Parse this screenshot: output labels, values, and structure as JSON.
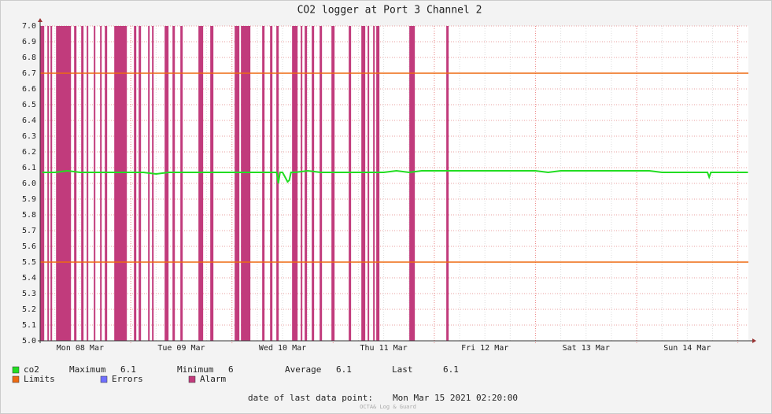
{
  "chart_data": {
    "type": "line",
    "title": "CO2 logger at Port 3 Channel 2",
    "xlim": [
      2.5,
      170.5
    ],
    "xticks": [
      {
        "value": 12,
        "label": "Mon 08 Mar"
      },
      {
        "value": 36,
        "label": "Tue 09 Mar"
      },
      {
        "value": 60,
        "label": "Wed 10 Mar"
      },
      {
        "value": 84,
        "label": "Thu 11 Mar"
      },
      {
        "value": 108,
        "label": "Fri 12 Mar"
      },
      {
        "value": 132,
        "label": "Sat 13 Mar"
      },
      {
        "value": 156,
        "label": "Sun 14 Mar"
      }
    ],
    "day_lines": [
      24,
      48,
      72,
      96,
      120,
      144,
      168
    ],
    "ylim": [
      5,
      7
    ],
    "yticks": [
      {
        "value": 5,
        "label": "5.0"
      },
      5.1,
      5.2,
      5.3,
      5.4,
      5.5,
      5.6,
      5.7,
      5.8,
      5.9,
      {
        "value": 6,
        "label": "6.0"
      },
      6.1,
      6.2,
      6.3,
      6.4,
      6.5,
      6.6,
      6.7,
      6.8,
      6.9,
      {
        "value": 7,
        "label": "7.0"
      }
    ],
    "grid": true,
    "series": [
      {
        "name": "co2",
        "color": "#22dd22",
        "x": [
          3,
          6,
          9,
          12,
          15,
          18,
          21,
          24,
          27,
          30,
          33,
          36,
          39,
          42,
          45,
          48,
          51,
          54,
          57,
          58.6,
          59,
          59.4,
          60,
          61.2,
          61.6,
          62,
          63,
          66,
          69,
          72,
          75,
          78,
          81,
          84,
          87,
          90,
          93,
          96,
          99,
          102,
          105,
          108,
          111,
          114,
          117,
          120,
          123,
          126,
          129,
          132,
          135,
          138,
          141,
          144,
          147,
          150,
          153,
          156,
          159,
          160.8,
          161.2,
          161.6,
          162,
          165,
          168,
          170.4
        ],
        "values": [
          6.07,
          6.07,
          6.08,
          6.07,
          6.07,
          6.07,
          6.07,
          6.07,
          6.07,
          6.06,
          6.07,
          6.07,
          6.07,
          6.07,
          6.07,
          6.07,
          6.07,
          6.07,
          6.07,
          6.07,
          6.0,
          6.07,
          6.07,
          6.01,
          6.02,
          6.07,
          6.07,
          6.08,
          6.07,
          6.07,
          6.07,
          6.07,
          6.07,
          6.07,
          6.08,
          6.07,
          6.08,
          6.08,
          6.08,
          6.08,
          6.08,
          6.08,
          6.08,
          6.08,
          6.08,
          6.08,
          6.07,
          6.08,
          6.08,
          6.08,
          6.08,
          6.08,
          6.08,
          6.08,
          6.08,
          6.07,
          6.07,
          6.07,
          6.07,
          6.07,
          6.04,
          6.07,
          6.07,
          6.07,
          6.07,
          6.07
        ],
        "stats": [
          {
            "label": "Maximum",
            "value": 6.1
          },
          {
            "label": "Minimum",
            "value": 6.0
          },
          {
            "label": "Average",
            "value": 6.1
          },
          {
            "label": "Last",
            "value": 6.1
          }
        ]
      },
      {
        "name": "Limits",
        "color": "#ee6a11",
        "values": [
          5.5,
          6.7
        ]
      },
      {
        "name": "Errors",
        "color": "#6f6fff",
        "values": []
      },
      {
        "name": "Alarm",
        "color": "#c13b7c",
        "intervals": [
          [
            2.54,
            3.47
          ],
          [
            4.22,
            4.59
          ],
          [
            4.96,
            5.34
          ],
          [
            6.27,
            9.82
          ],
          [
            10.56,
            11.12
          ],
          [
            12.24,
            12.8
          ],
          [
            13.55,
            13.92
          ],
          [
            15.23,
            15.6
          ],
          [
            16.72,
            17.1
          ],
          [
            17.84,
            18.4
          ],
          [
            20.08,
            23.07
          ],
          [
            24.75,
            25.31
          ],
          [
            25.87,
            26.43
          ],
          [
            28.11,
            28.48
          ],
          [
            29.04,
            29.42
          ],
          [
            32.03,
            32.96
          ],
          [
            33.9,
            34.46
          ],
          [
            35.76,
            36.32
          ],
          [
            40.05,
            41.17
          ],
          [
            42.85,
            43.6
          ],
          [
            48.64,
            49.76
          ],
          [
            50.13,
            52.37
          ],
          [
            55.17,
            55.73
          ],
          [
            57.04,
            57.6
          ],
          [
            58.53,
            59.09
          ],
          [
            62.26,
            63.57
          ],
          [
            64.32,
            64.69
          ],
          [
            65.25,
            65.81
          ],
          [
            66.93,
            67.49
          ],
          [
            68.8,
            69.36
          ],
          [
            71.6,
            72.34
          ],
          [
            75.7,
            76.26
          ],
          [
            78.69,
            79.62
          ],
          [
            80.18,
            80.55
          ],
          [
            81.49,
            81.86
          ],
          [
            82.23,
            82.98
          ],
          [
            90.07,
            91.38
          ],
          [
            98.84,
            99.4
          ]
        ]
      }
    ],
    "footer_label": "date of last data point:",
    "footer_value": "Mon Mar 15 2021 02:20:00",
    "watermark": "OCTA& Log & Guard"
  }
}
